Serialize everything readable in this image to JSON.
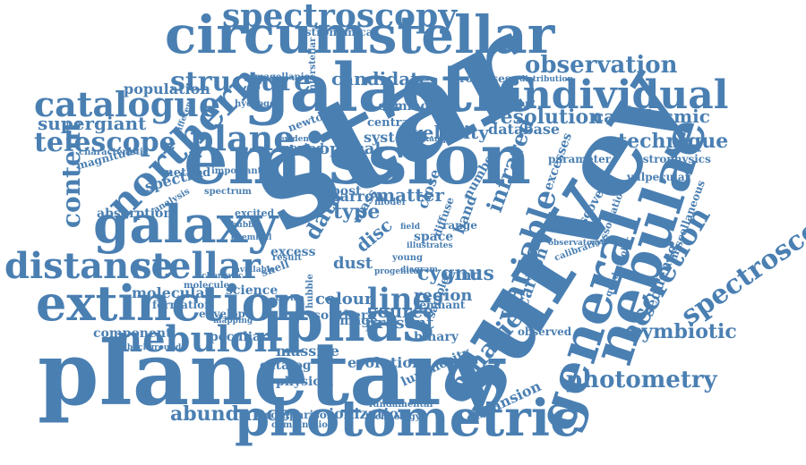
{
  "accent": "#4a7fb2",
  "words": [
    "star",
    "survey",
    "planetary",
    "emission",
    "galactic",
    "circumstellar",
    "photometric",
    "nebulae",
    "general",
    "iphas",
    "extinction",
    "galaxy",
    "nebulon",
    "northern",
    "distance",
    "stellar",
    "individual",
    "variable",
    "spectroscopy",
    "catalogue",
    "plane",
    "telescope",
    "accretion",
    "spectroscopic",
    "binaries",
    "structure",
    "observation",
    "photometry",
    "abundance",
    "symbiotic",
    "content",
    "cataclysmic",
    "technique",
    "resolution",
    "candidate",
    "population",
    "supergiant",
    "line",
    "colour",
    "cygnus",
    "source",
    "region",
    "matter",
    "type",
    "data",
    "system",
    "velocity",
    "infrared",
    "optical",
    "carbon",
    "molecular",
    "massive",
    "catalog",
    "physical",
    "evolution",
    "ionization",
    "comparison",
    "expansion",
    "luminosity",
    "technology",
    "combination",
    "fundamental",
    "present",
    "southern",
    "binary",
    "image",
    "science",
    "peculiar",
    "component",
    "formation",
    "absorption",
    "spectra",
    "method",
    "magnitude",
    "characteristic",
    "background",
    "processes",
    "distribution",
    "astronomical",
    "magellanic",
    "interstellar",
    "common",
    "central",
    "database",
    "newton",
    "period",
    "evidence",
    "dust",
    "wind",
    "disc",
    "narrow",
    "post",
    "excess",
    "hydrogen",
    "shell",
    "envelope",
    "molecule",
    "space",
    "model",
    "number",
    "band",
    "close",
    "hubble",
    "remnant",
    "diagram",
    "observed",
    "sequence",
    "astrophysics",
    "vulpecular",
    "miscellaneous",
    "parameter",
    "discovery",
    "excesses",
    "association",
    "calibration",
    "observatory",
    "quadrupolar",
    "schematic",
    "important",
    "different",
    "consistent",
    "analysis",
    "spectrum",
    "chemical",
    "result",
    "reveal",
    "excited",
    "available",
    "mapping",
    "bubble",
    "carina",
    "sample",
    "diffuse",
    "example",
    "range",
    "mass",
    "young",
    "field",
    "illustrates",
    "progenitor"
  ]
}
